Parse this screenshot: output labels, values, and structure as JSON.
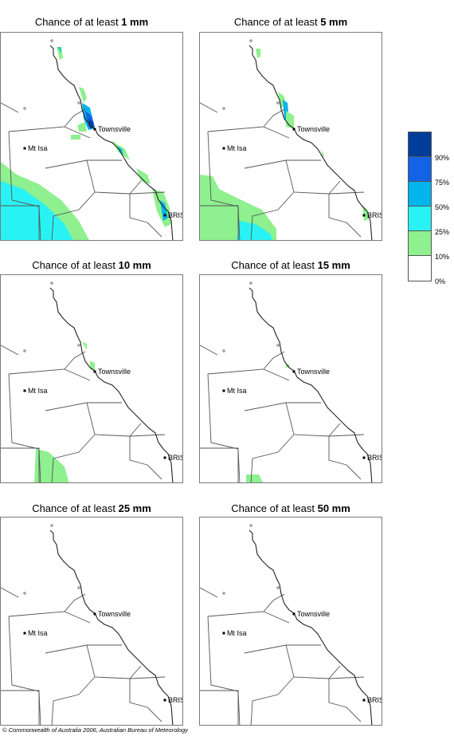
{
  "map_defs": {
    "towns": [
      {
        "name": "Townsville"
      },
      {
        "name": "Mt Isa"
      },
      {
        "name": "BRIS"
      }
    ]
  },
  "panels": [
    {
      "prefix": "Chance of at least ",
      "amount": "1 mm",
      "zones": "p1"
    },
    {
      "prefix": "Chance of at least ",
      "amount": "5 mm",
      "zones": "p2"
    },
    {
      "prefix": "Chance of at least ",
      "amount": "10 mm",
      "zones": "p3"
    },
    {
      "prefix": "Chance of at least ",
      "amount": "15 mm",
      "zones": "p4"
    },
    {
      "prefix": "Chance of at least ",
      "amount": "25 mm",
      "zones": "p5"
    },
    {
      "prefix": "Chance of at least ",
      "amount": "50 mm",
      "zones": "p6"
    }
  ],
  "legend": {
    "colors": [
      "#003c9a",
      "#1463e6",
      "#00b4ec",
      "#29f2f4",
      "#8ef08e",
      "#ffffff"
    ],
    "labels": [
      "90%",
      "75%",
      "50%",
      "25%",
      "10%",
      "0%"
    ]
  },
  "colors": {
    "green": "#8ef08e",
    "cyan": "#29f2f4",
    "sky": "#00b4ec",
    "blue": "#1463e6",
    "navy": "#003c9a"
  },
  "copyright": "© Commonwealth of Australia 2006, Australian Bureau of Meteorology"
}
